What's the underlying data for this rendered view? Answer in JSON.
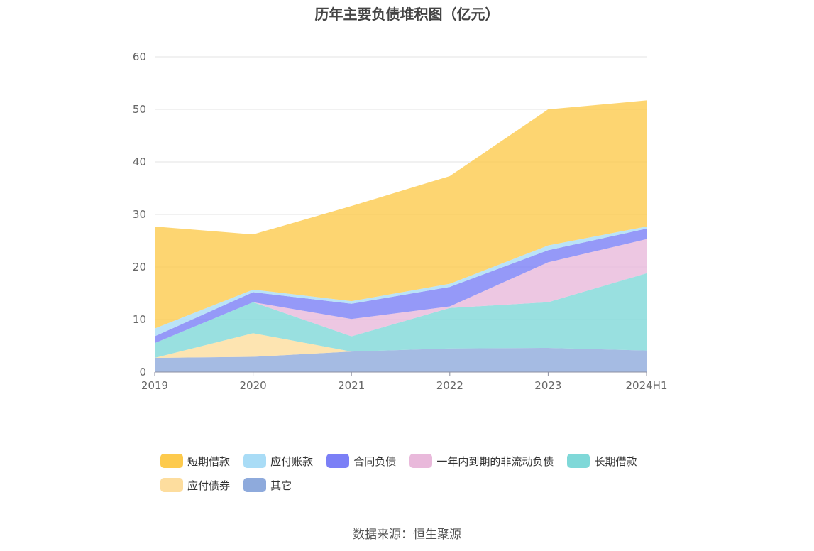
{
  "chart_data": {
    "type": "area",
    "stacked": true,
    "title": "历年主要负债堆积图（亿元）",
    "categories": [
      "2019",
      "2020",
      "2021",
      "2022",
      "2023",
      "2024H1"
    ],
    "ylim": [
      0,
      60
    ],
    "yticks": [
      0,
      10,
      20,
      30,
      40,
      50,
      60
    ],
    "grid": true,
    "legend_position": "bottom",
    "series": [
      {
        "name": "其它",
        "color": "#8eaadc",
        "values": [
          2.7,
          2.9,
          3.9,
          4.5,
          4.6,
          4.1
        ]
      },
      {
        "name": "应付债券",
        "color": "#fddd9e",
        "values": [
          0.0,
          4.5,
          0.0,
          0.0,
          0.0,
          0.0
        ]
      },
      {
        "name": "长期借款",
        "color": "#7fd8d8",
        "values": [
          2.8,
          5.9,
          2.9,
          7.7,
          8.7,
          14.7
        ]
      },
      {
        "name": "一年内到期的非流动负债",
        "color": "#e9b9db",
        "values": [
          0.0,
          0.0,
          3.3,
          0.3,
          7.6,
          6.5
        ]
      },
      {
        "name": "合同负债",
        "color": "#7b7ff6",
        "values": [
          1.3,
          1.9,
          2.9,
          3.7,
          2.3,
          2.0
        ]
      },
      {
        "name": "应付账款",
        "color": "#a9dcf6",
        "values": [
          1.5,
          0.5,
          0.5,
          0.6,
          0.9,
          0.4
        ]
      },
      {
        "name": "短期借款",
        "color": "#fdca4d",
        "values": [
          19.4,
          10.5,
          18.1,
          20.5,
          25.9,
          24.0
        ]
      }
    ]
  },
  "legend": [
    {
      "label": "短期借款",
      "color": "#fdca4d"
    },
    {
      "label": "应付账款",
      "color": "#a9dcf6"
    },
    {
      "label": "合同负债",
      "color": "#7b7ff6"
    },
    {
      "label": "一年内到期的非流动负债",
      "color": "#e9b9db"
    },
    {
      "label": "长期借款",
      "color": "#7fd8d8"
    },
    {
      "label": "应付债券",
      "color": "#fddd9e"
    },
    {
      "label": "其它",
      "color": "#8eaadc"
    }
  ],
  "source": "数据来源：恒生聚源"
}
